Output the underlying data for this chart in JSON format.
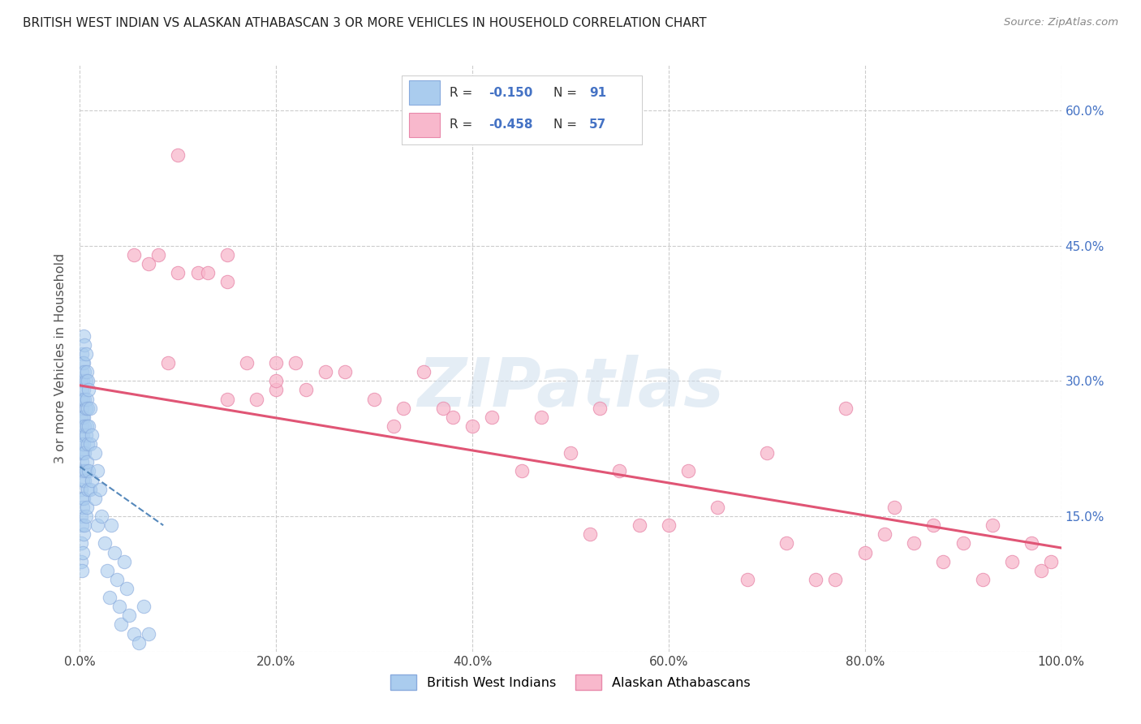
{
  "title": "BRITISH WEST INDIAN VS ALASKAN ATHABASCAN 3 OR MORE VEHICLES IN HOUSEHOLD CORRELATION CHART",
  "source": "Source: ZipAtlas.com",
  "ylabel": "3 or more Vehicles in Household",
  "xlim": [
    0.0,
    1.0
  ],
  "ylim": [
    0.0,
    0.65
  ],
  "xticks": [
    0.0,
    0.2,
    0.4,
    0.6,
    0.8,
    1.0
  ],
  "xticklabels": [
    "0.0%",
    "20.0%",
    "40.0%",
    "60.0%",
    "80.0%",
    "100.0%"
  ],
  "yticks": [
    0.0,
    0.15,
    0.3,
    0.45,
    0.6
  ],
  "yticklabels": [
    "",
    "15.0%",
    "30.0%",
    "45.0%",
    "60.0%"
  ],
  "right_ytick_color": "#4472c4",
  "bwi_color": "#aaccee",
  "bwi_edge_color": "#88aadd",
  "aa_color": "#f8b8cc",
  "aa_edge_color": "#e888aa",
  "bwi_line_color": "#5588bb",
  "aa_line_color": "#e05575",
  "grid_color": "#cccccc",
  "watermark": "ZIPatlas",
  "legend_label1": "British West Indians",
  "legend_label2": "Alaskan Athabascans",
  "legend_text_color": "#4472c4",
  "bwi_x": [
    0.001,
    0.001,
    0.001,
    0.001,
    0.001,
    0.001,
    0.001,
    0.001,
    0.001,
    0.001,
    0.002,
    0.002,
    0.002,
    0.002,
    0.002,
    0.002,
    0.002,
    0.002,
    0.002,
    0.002,
    0.003,
    0.003,
    0.003,
    0.003,
    0.003,
    0.003,
    0.003,
    0.003,
    0.003,
    0.004,
    0.004,
    0.004,
    0.004,
    0.004,
    0.004,
    0.004,
    0.004,
    0.005,
    0.005,
    0.005,
    0.005,
    0.005,
    0.005,
    0.005,
    0.006,
    0.006,
    0.006,
    0.006,
    0.006,
    0.006,
    0.007,
    0.007,
    0.007,
    0.007,
    0.007,
    0.008,
    0.008,
    0.008,
    0.008,
    0.009,
    0.009,
    0.009,
    0.01,
    0.01,
    0.01,
    0.012,
    0.012,
    0.015,
    0.015,
    0.018,
    0.018,
    0.02,
    0.022,
    0.025,
    0.028,
    0.03,
    0.032,
    0.035,
    0.038,
    0.04,
    0.042,
    0.045,
    0.048,
    0.05,
    0.055,
    0.06,
    0.065,
    0.07
  ],
  "bwi_y": [
    0.3,
    0.28,
    0.26,
    0.24,
    0.22,
    0.2,
    0.18,
    0.15,
    0.12,
    0.1,
    0.33,
    0.31,
    0.29,
    0.27,
    0.25,
    0.23,
    0.21,
    0.17,
    0.14,
    0.09,
    0.32,
    0.3,
    0.28,
    0.26,
    0.24,
    0.22,
    0.19,
    0.16,
    0.11,
    0.35,
    0.32,
    0.29,
    0.26,
    0.23,
    0.2,
    0.17,
    0.13,
    0.34,
    0.31,
    0.28,
    0.25,
    0.22,
    0.19,
    0.14,
    0.33,
    0.3,
    0.27,
    0.24,
    0.2,
    0.15,
    0.31,
    0.28,
    0.25,
    0.21,
    0.16,
    0.3,
    0.27,
    0.23,
    0.18,
    0.29,
    0.25,
    0.2,
    0.27,
    0.23,
    0.18,
    0.24,
    0.19,
    0.22,
    0.17,
    0.2,
    0.14,
    0.18,
    0.15,
    0.12,
    0.09,
    0.06,
    0.14,
    0.11,
    0.08,
    0.05,
    0.03,
    0.1,
    0.07,
    0.04,
    0.02,
    0.01,
    0.05,
    0.02
  ],
  "aa_x": [
    0.055,
    0.07,
    0.08,
    0.09,
    0.1,
    0.12,
    0.13,
    0.15,
    0.15,
    0.17,
    0.18,
    0.2,
    0.2,
    0.22,
    0.23,
    0.25,
    0.27,
    0.3,
    0.32,
    0.33,
    0.35,
    0.37,
    0.38,
    0.4,
    0.42,
    0.45,
    0.47,
    0.5,
    0.52,
    0.53,
    0.55,
    0.57,
    0.6,
    0.62,
    0.65,
    0.68,
    0.7,
    0.72,
    0.75,
    0.77,
    0.78,
    0.8,
    0.82,
    0.83,
    0.85,
    0.87,
    0.88,
    0.9,
    0.92,
    0.93,
    0.95,
    0.97,
    0.98,
    0.99,
    0.1,
    0.15,
    0.2
  ],
  "aa_y": [
    0.44,
    0.43,
    0.44,
    0.32,
    0.42,
    0.42,
    0.42,
    0.44,
    0.41,
    0.32,
    0.28,
    0.32,
    0.29,
    0.32,
    0.29,
    0.31,
    0.31,
    0.28,
    0.25,
    0.27,
    0.31,
    0.27,
    0.26,
    0.25,
    0.26,
    0.2,
    0.26,
    0.22,
    0.13,
    0.27,
    0.2,
    0.14,
    0.14,
    0.2,
    0.16,
    0.08,
    0.22,
    0.12,
    0.08,
    0.08,
    0.27,
    0.11,
    0.13,
    0.16,
    0.12,
    0.14,
    0.1,
    0.12,
    0.08,
    0.14,
    0.1,
    0.12,
    0.09,
    0.1,
    0.55,
    0.28,
    0.3
  ],
  "bwi_line_x0": 0.0,
  "bwi_line_y0": 0.205,
  "bwi_line_x1": 0.085,
  "bwi_line_y1": 0.14,
  "aa_line_x0": 0.0,
  "aa_line_y0": 0.295,
  "aa_line_x1": 1.0,
  "aa_line_y1": 0.115
}
